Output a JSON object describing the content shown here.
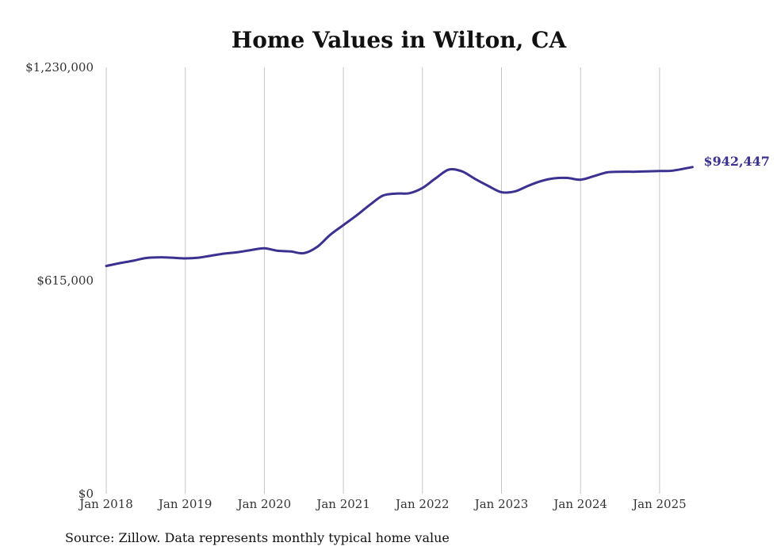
{
  "chart_data": {
    "type": "line",
    "title": "Home Values in Wilton, CA",
    "xlabel": "",
    "ylabel": "",
    "ylim": [
      0,
      1230000
    ],
    "xlim": [
      "2018-01",
      "2025-06"
    ],
    "y_ticks": [
      {
        "value": 0,
        "label": "$0"
      },
      {
        "value": 615000,
        "label": "$615,000"
      },
      {
        "value": 1230000,
        "label": "$1,230,000"
      }
    ],
    "x_ticks": [
      {
        "value": "2018-01",
        "label": "Jan 2018"
      },
      {
        "value": "2019-01",
        "label": "Jan 2019"
      },
      {
        "value": "2020-01",
        "label": "Jan 2020"
      },
      {
        "value": "2021-01",
        "label": "Jan 2021"
      },
      {
        "value": "2022-01",
        "label": "Jan 2022"
      },
      {
        "value": "2023-01",
        "label": "Jan 2023"
      },
      {
        "value": "2024-01",
        "label": "Jan 2024"
      },
      {
        "value": "2025-01",
        "label": "Jan 2025"
      }
    ],
    "grid": {
      "vertical": true,
      "horizontal": false
    },
    "series_color": "#3b3191",
    "end_label": "$942,447",
    "series": [
      {
        "x": [
          "2018-01",
          "2018-03",
          "2018-05",
          "2018-07",
          "2018-09",
          "2018-11",
          "2019-01",
          "2019-03",
          "2019-05",
          "2019-07",
          "2019-09",
          "2019-11",
          "2020-01",
          "2020-03",
          "2020-05",
          "2020-07",
          "2020-09",
          "2020-11",
          "2021-01",
          "2021-03",
          "2021-05",
          "2021-07",
          "2021-09",
          "2021-11",
          "2022-01",
          "2022-03",
          "2022-05",
          "2022-07",
          "2022-09",
          "2022-11",
          "2023-01",
          "2023-03",
          "2023-05",
          "2023-07",
          "2023-09",
          "2023-11",
          "2024-01",
          "2024-03",
          "2024-05",
          "2024-07",
          "2024-09",
          "2024-11",
          "2025-01",
          "2025-03",
          "2025-06"
        ],
        "values": [
          657000,
          665000,
          672000,
          680000,
          682000,
          681000,
          679000,
          681000,
          687000,
          693000,
          697000,
          703000,
          708000,
          701000,
          699000,
          694000,
          712000,
          747000,
          775000,
          803000,
          833000,
          860000,
          866000,
          867000,
          882000,
          910000,
          935000,
          930000,
          908000,
          888000,
          870000,
          872000,
          888000,
          902000,
          910000,
          911000,
          906000,
          916000,
          927000,
          929000,
          929000,
          930000,
          931000,
          932000,
          942447
        ]
      }
    ]
  },
  "source_note": "Source: Zillow. Data represents monthly typical home value"
}
